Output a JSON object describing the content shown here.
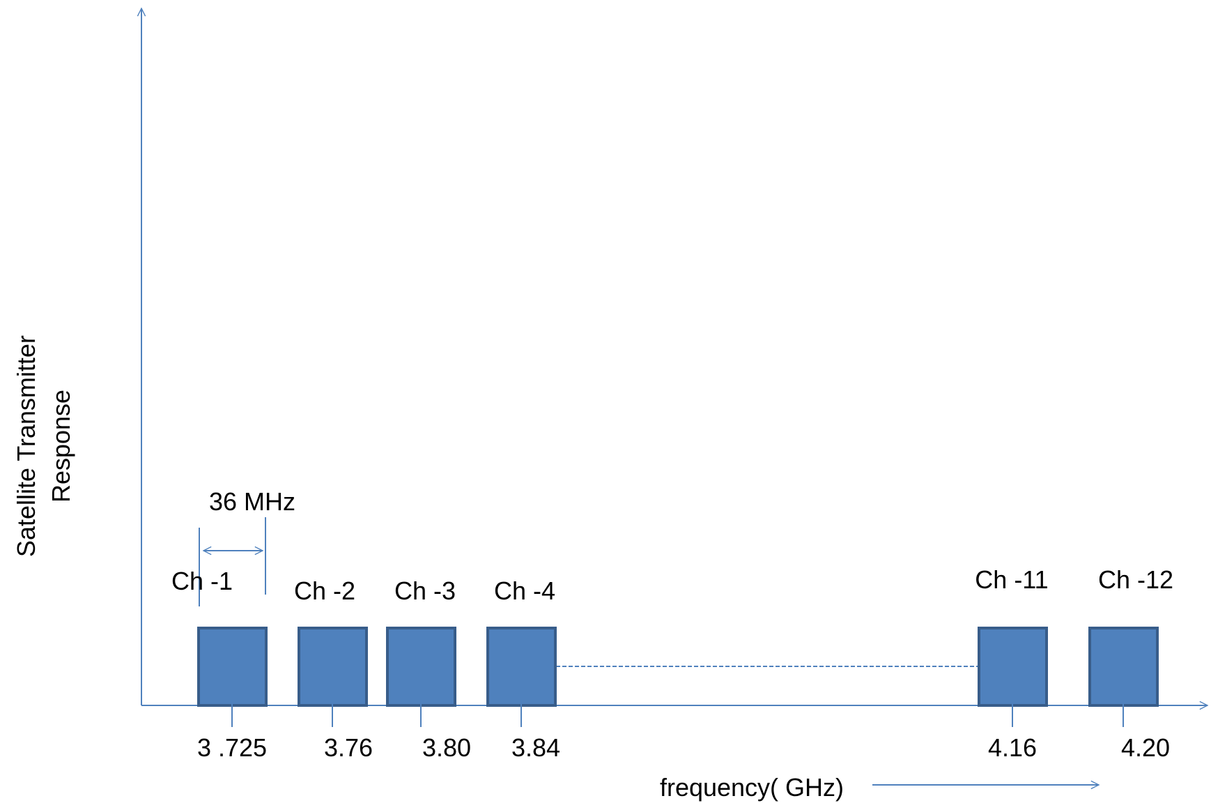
{
  "colors": {
    "axis": "#4f81bd",
    "channel_fill": "#4f81bd",
    "channel_border": "#385d8a",
    "text": "#000000"
  },
  "y_axis_label": {
    "line1": "Satellite Transmitter",
    "line2": "Response"
  },
  "x_axis_label": "frequency( GHz)",
  "bandwidth_label": "36 MHz",
  "channels": [
    {
      "name": "Ch -1",
      "freq": "3 .725"
    },
    {
      "name": "Ch -2",
      "freq": "3.76"
    },
    {
      "name": "Ch -3",
      "freq": "3.80"
    },
    {
      "name": "Ch -4",
      "freq": "3.84"
    },
    {
      "name": "Ch -11",
      "freq": "4.16"
    },
    {
      "name": "Ch -12",
      "freq": "4.20"
    }
  ]
}
